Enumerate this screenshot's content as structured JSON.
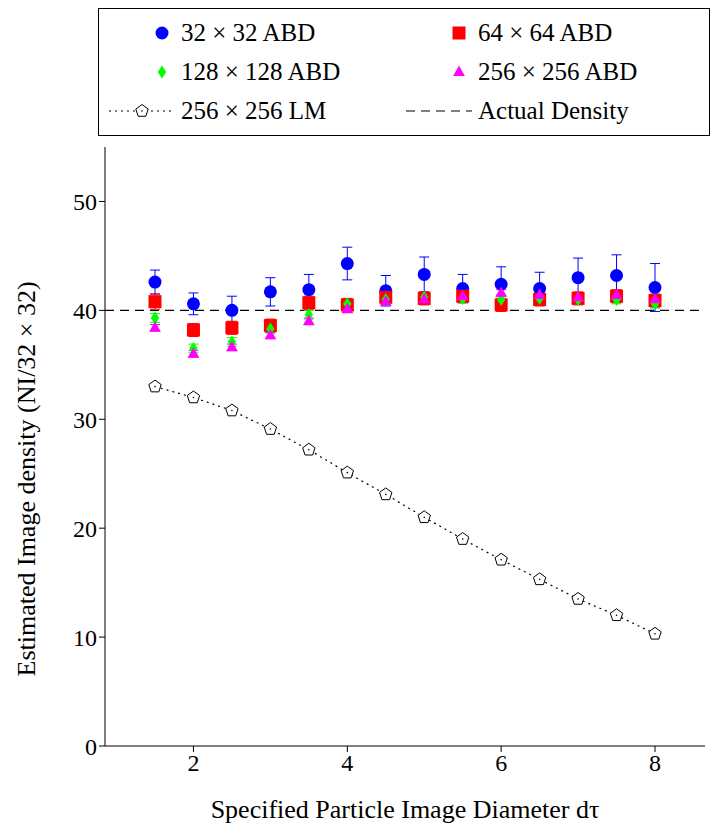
{
  "chart_data": {
    "type": "scatter",
    "x_label": "Specified Particle Image Diameter dτ",
    "y_label": "Estimated Image density (NI/32 × 32)",
    "x": [
      1.5,
      2,
      2.5,
      3,
      3.5,
      4,
      4.5,
      5,
      5.5,
      6,
      6.5,
      7,
      7.5,
      8
    ],
    "xlim": [
      0.85,
      8.65
    ],
    "xticks": [
      2,
      4,
      6,
      8
    ],
    "ylim": [
      0,
      55
    ],
    "yticks": [
      0,
      10,
      20,
      30,
      40,
      50
    ],
    "grid": false,
    "legend": "top",
    "series": [
      {
        "name": "32 × 32 ABD",
        "color": "#0000ff",
        "marker": "circle",
        "values": [
          42.6,
          40.6,
          40.0,
          41.7,
          41.9,
          44.3,
          41.8,
          43.3,
          42.0,
          42.4,
          42.0,
          43.0,
          43.2,
          42.1
        ],
        "errors": [
          1.1,
          1.0,
          1.3,
          1.3,
          1.4,
          1.5,
          1.4,
          1.6,
          1.3,
          1.6,
          1.5,
          1.8,
          1.9,
          2.2
        ]
      },
      {
        "name": "64 × 64 ABD",
        "color": "#ff0000",
        "marker": "square",
        "values": [
          40.8,
          38.2,
          38.4,
          38.6,
          40.7,
          40.5,
          41.2,
          41.1,
          41.3,
          40.5,
          41.0,
          41.1,
          41.3,
          40.9
        ],
        "errors": [
          0.7,
          0.6,
          0.6,
          0.6,
          0.6,
          0.6,
          0.6,
          0.6,
          0.6,
          0.6,
          0.6,
          0.6,
          0.6,
          0.6
        ]
      },
      {
        "name": "128 × 128 ABD",
        "color": "#00ff00",
        "marker": "diamond",
        "values": [
          39.3,
          36.5,
          37.1,
          38.3,
          39.6,
          40.6,
          41.0,
          41.2,
          41.1,
          41.0,
          41.1,
          41.0,
          41.0,
          40.6
        ],
        "errors": [
          0.4,
          0.4,
          0.4,
          0.4,
          0.4,
          0.4,
          0.4,
          0.4,
          0.4,
          0.4,
          0.4,
          0.4,
          0.4,
          0.4
        ]
      },
      {
        "name": "256 × 256 ABD",
        "color": "#ff00ff",
        "marker": "triangle",
        "values": [
          38.4,
          36.0,
          36.6,
          37.7,
          39.0,
          40.1,
          40.8,
          41.0,
          41.3,
          41.6,
          41.4,
          41.2,
          41.4,
          41.0
        ],
        "errors": [
          0.3,
          0.3,
          0.3,
          0.3,
          0.3,
          0.3,
          0.3,
          0.3,
          0.3,
          0.3,
          0.3,
          0.3,
          0.3,
          0.3
        ]
      },
      {
        "name": "256 × 256 LM",
        "color": "#000000",
        "marker": "pentagon",
        "line_style": "dotted",
        "values": [
          33.0,
          32.0,
          30.8,
          29.1,
          27.2,
          25.1,
          23.1,
          21.0,
          19.0,
          17.1,
          15.3,
          13.5,
          12.0,
          10.3
        ]
      },
      {
        "name": "Actual Density",
        "type": "hline",
        "color": "#000000",
        "line_style": "dashed",
        "value": 40
      }
    ]
  }
}
